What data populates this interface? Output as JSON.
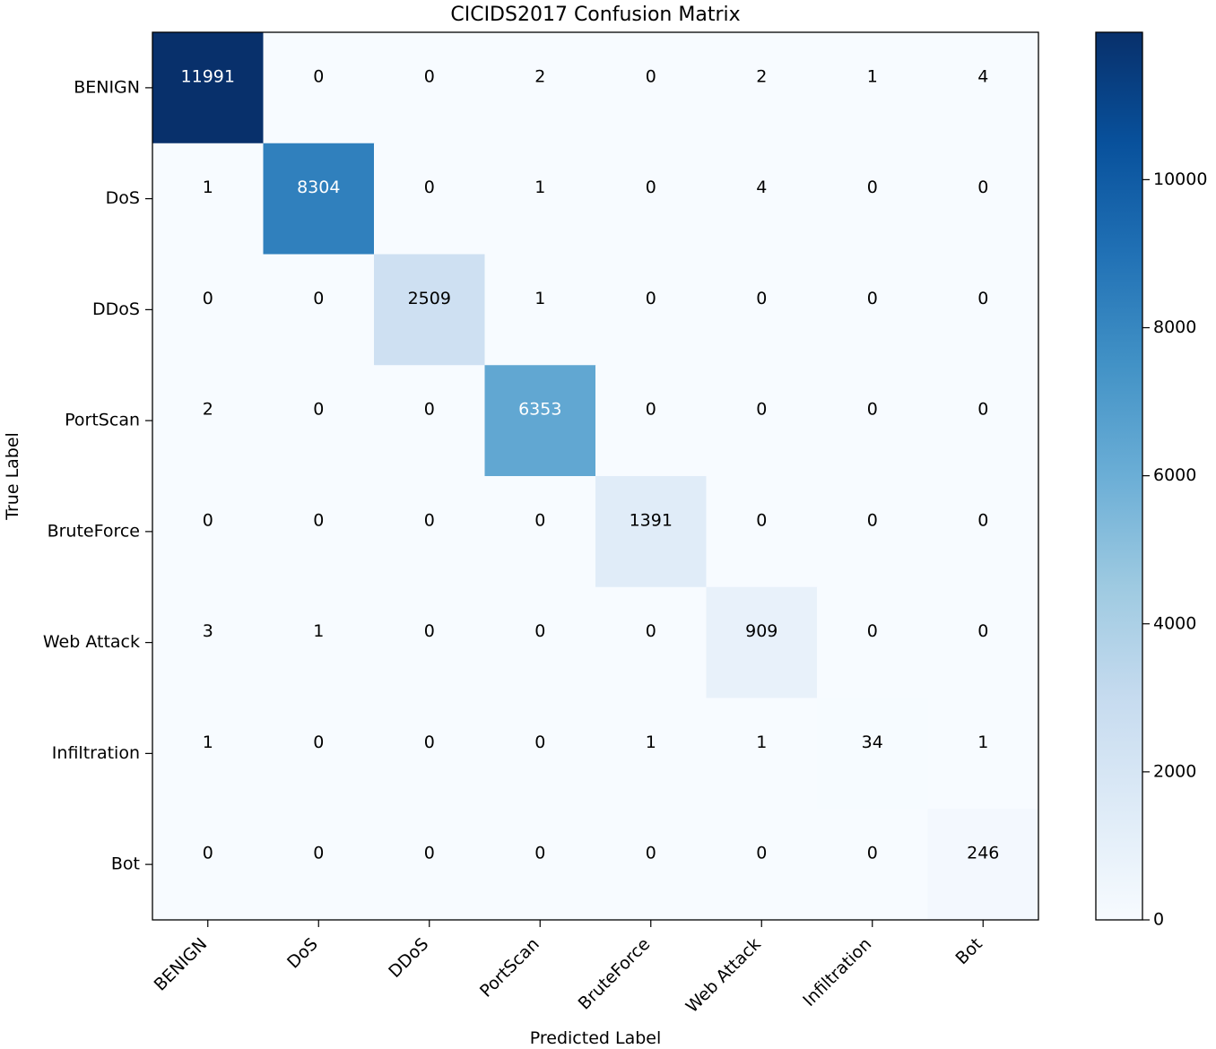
{
  "chart_data": {
    "type": "heatmap",
    "title": "CICIDS2017 Confusion Matrix",
    "xlabel": "Predicted Label",
    "ylabel": "True Label",
    "x_categories": [
      "BENIGN",
      "DoS",
      "DDoS",
      "PortScan",
      "BruteForce",
      "Web Attack",
      "Infiltration",
      "Bot"
    ],
    "y_categories": [
      "BENIGN",
      "DoS",
      "DDoS",
      "PortScan",
      "BruteForce",
      "Web Attack",
      "Infiltration",
      "Bot"
    ],
    "values": [
      [
        11991,
        0,
        0,
        2,
        0,
        2,
        1,
        4
      ],
      [
        1,
        8304,
        0,
        1,
        0,
        4,
        0,
        0
      ],
      [
        0,
        0,
        2509,
        1,
        0,
        0,
        0,
        0
      ],
      [
        2,
        0,
        0,
        6353,
        0,
        0,
        0,
        0
      ],
      [
        0,
        0,
        0,
        0,
        1391,
        0,
        0,
        0
      ],
      [
        3,
        1,
        0,
        0,
        0,
        909,
        0,
        0
      ],
      [
        1,
        0,
        0,
        0,
        1,
        1,
        34,
        1
      ],
      [
        0,
        0,
        0,
        0,
        0,
        0,
        0,
        246
      ]
    ],
    "colormap": "Blues",
    "colormap_stops": [
      "#f7fbff",
      "#deebf7",
      "#c6dbef",
      "#9ecae1",
      "#6baed6",
      "#4292c6",
      "#2171b5",
      "#08519c",
      "#08306b"
    ],
    "vmin": 0,
    "vmax": 11991,
    "colorbar_ticks": [
      0,
      2000,
      4000,
      6000,
      8000,
      10000
    ]
  }
}
